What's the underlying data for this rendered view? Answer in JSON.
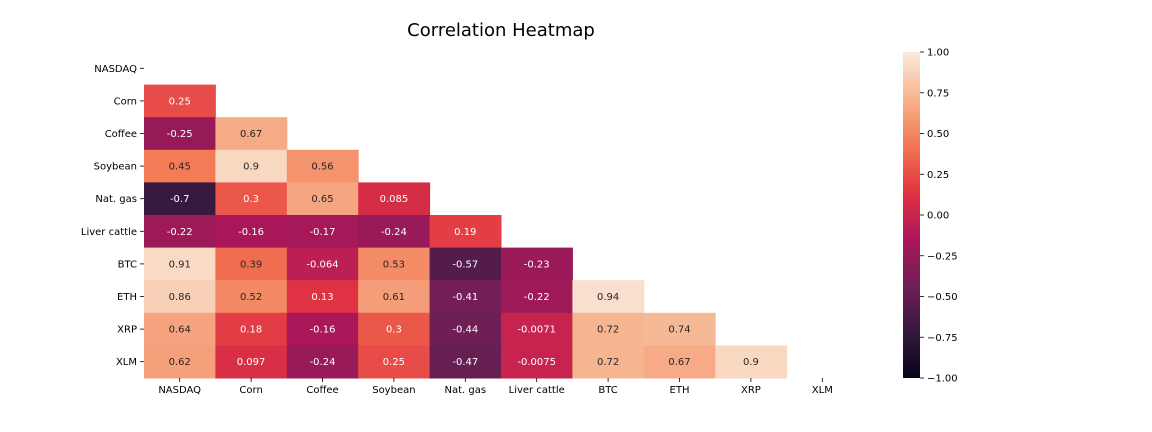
{
  "chart_data": {
    "type": "heatmap",
    "title": "Correlation Heatmap",
    "row_labels": [
      "NASDAQ",
      "Corn",
      "Coffee",
      "Soybean",
      "Nat. gas",
      "Liver cattle",
      "BTC",
      "ETH",
      "XRP",
      "XLM"
    ],
    "col_labels": [
      "NASDAQ",
      "Corn",
      "Coffee",
      "Soybean",
      "Nat. gas",
      "Liver cattle",
      "BTC",
      "ETH",
      "XRP",
      "XLM"
    ],
    "mask": "upper-triangle-including-diagonal",
    "values": [
      [
        null,
        null,
        null,
        null,
        null,
        null,
        null,
        null,
        null,
        null
      ],
      [
        0.25,
        null,
        null,
        null,
        null,
        null,
        null,
        null,
        null,
        null
      ],
      [
        -0.25,
        0.67,
        null,
        null,
        null,
        null,
        null,
        null,
        null,
        null
      ],
      [
        0.45,
        0.9,
        0.56,
        null,
        null,
        null,
        null,
        null,
        null,
        null
      ],
      [
        -0.7,
        0.3,
        0.65,
        0.085,
        null,
        null,
        null,
        null,
        null,
        null
      ],
      [
        -0.22,
        -0.16,
        -0.17,
        -0.24,
        0.19,
        null,
        null,
        null,
        null,
        null
      ],
      [
        0.91,
        0.39,
        -0.064,
        0.53,
        -0.57,
        -0.23,
        null,
        null,
        null,
        null
      ],
      [
        0.86,
        0.52,
        0.13,
        0.61,
        -0.41,
        -0.22,
        0.94,
        null,
        null,
        null
      ],
      [
        0.64,
        0.18,
        -0.16,
        0.3,
        -0.44,
        -0.0071,
        0.72,
        0.74,
        null,
        null
      ],
      [
        0.62,
        0.097,
        -0.24,
        0.25,
        -0.47,
        -0.0075,
        0.72,
        0.67,
        0.9,
        null
      ]
    ],
    "value_labels": [
      [
        null,
        null,
        null,
        null,
        null,
        null,
        null,
        null,
        null,
        null
      ],
      [
        "0.25",
        null,
        null,
        null,
        null,
        null,
        null,
        null,
        null,
        null
      ],
      [
        "-0.25",
        "0.67",
        null,
        null,
        null,
        null,
        null,
        null,
        null,
        null
      ],
      [
        "0.45",
        "0.9",
        "0.56",
        null,
        null,
        null,
        null,
        null,
        null,
        null
      ],
      [
        "-0.7",
        "0.3",
        "0.65",
        "0.085",
        null,
        null,
        null,
        null,
        null,
        null
      ],
      [
        "-0.22",
        "-0.16",
        "-0.17",
        "-0.24",
        "0.19",
        null,
        null,
        null,
        null,
        null
      ],
      [
        "0.91",
        "0.39",
        "-0.064",
        "0.53",
        "-0.57",
        "-0.23",
        null,
        null,
        null,
        null
      ],
      [
        "0.86",
        "0.52",
        "0.13",
        "0.61",
        "-0.41",
        "-0.22",
        "0.94",
        null,
        null,
        null
      ],
      [
        "0.64",
        "0.18",
        "-0.16",
        "0.3",
        "-0.44",
        "-0.0071",
        "0.72",
        "0.74",
        null,
        null
      ],
      [
        "0.62",
        "0.097",
        "-0.24",
        "0.25",
        "-0.47",
        "-0.0075",
        "0.72",
        "0.67",
        "0.9",
        null
      ]
    ],
    "vmin": -1,
    "vmax": 1,
    "colormap": "rocket",
    "colorbar": {
      "position": "right",
      "ticks": [
        1.0,
        0.75,
        0.5,
        0.25,
        0.0,
        -0.25,
        -0.5,
        -0.75,
        -1.0
      ],
      "tick_labels": [
        "1.00",
        "0.75",
        "0.50",
        "0.25",
        "0.00",
        "−0.25",
        "−0.50",
        "−0.75",
        "−1.00"
      ]
    },
    "grid": false,
    "colormap_stops": [
      "#03051a",
      "#35193e",
      "#701f57",
      "#ad1759",
      "#e13342",
      "#f37651",
      "#f6b48f",
      "#faebdd"
    ]
  }
}
